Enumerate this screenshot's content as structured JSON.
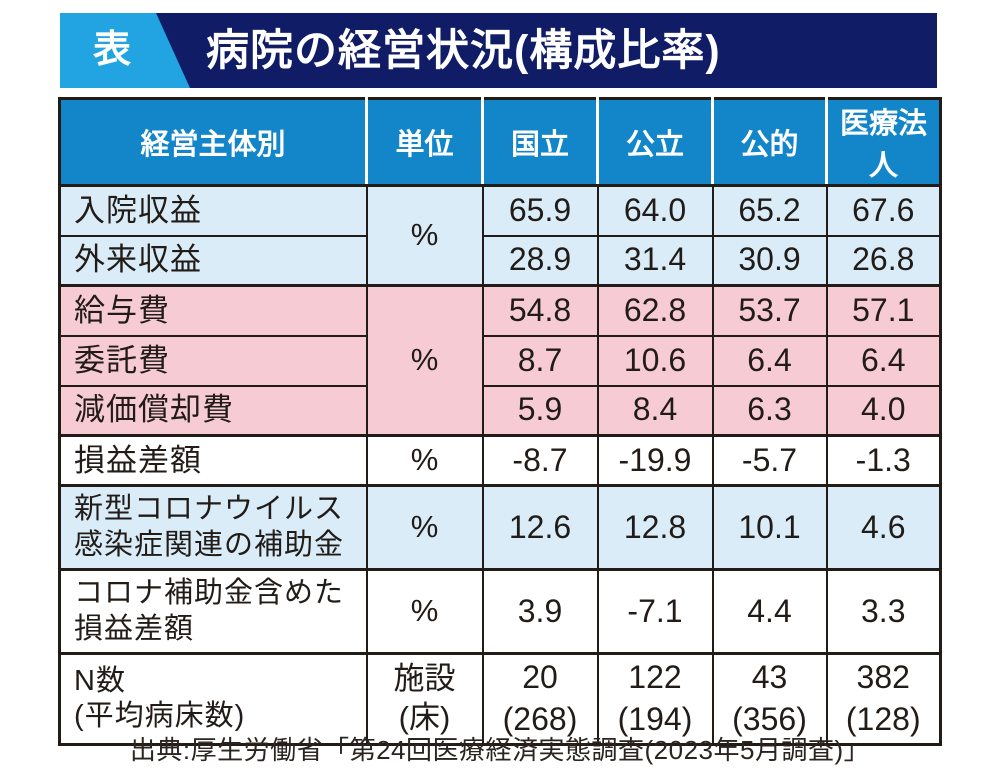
{
  "header": {
    "tag": "表",
    "title": "病院の経営状況(構成比率)"
  },
  "chart_data": {
    "type": "table",
    "title": "病院の経営状況(構成比率)",
    "columns": [
      "経営主体別",
      "単位",
      "国立",
      "公立",
      "公的",
      "医療法人"
    ],
    "row_groups": [
      {
        "bg": "lightblue",
        "unit": "%",
        "rows": [
          {
            "label": "入院収益",
            "values": [
              "65.9",
              "64.0",
              "65.2",
              "67.6"
            ]
          },
          {
            "label": "外来収益",
            "values": [
              "28.9",
              "31.4",
              "30.9",
              "26.8"
            ]
          }
        ]
      },
      {
        "bg": "pink",
        "unit": "%",
        "rows": [
          {
            "label": "給与費",
            "values": [
              "54.8",
              "62.8",
              "53.7",
              "57.1"
            ]
          },
          {
            "label": "委託費",
            "values": [
              "8.7",
              "10.6",
              "6.4",
              "6.4"
            ]
          },
          {
            "label": "減価償却費",
            "values": [
              "5.9",
              "8.4",
              "6.3",
              "4.0"
            ]
          }
        ]
      },
      {
        "bg": "white",
        "unit": "%",
        "rows": [
          {
            "label": "損益差額",
            "values": [
              "-8.7",
              "-19.9",
              "-5.7",
              "-1.3"
            ]
          }
        ]
      },
      {
        "bg": "lightblue",
        "unit": "%",
        "rows": [
          {
            "label": [
              "新型コロナウイルス",
              "感染症関連の補助金"
            ],
            "values": [
              "12.6",
              "12.8",
              "10.1",
              "4.6"
            ]
          }
        ]
      },
      {
        "bg": "white",
        "unit": "%",
        "rows": [
          {
            "label": [
              "コロナ補助金含めた",
              "損益差額"
            ],
            "values": [
              "3.9",
              "-7.1",
              "4.4",
              "3.3"
            ]
          }
        ]
      },
      {
        "bg": "white",
        "unit": [
          "施設",
          "(床)"
        ],
        "rows": [
          {
            "label": [
              "N数",
              "(平均病床数)"
            ],
            "values": [
              [
                "20",
                "(268)"
              ],
              [
                "122",
                "(194)"
              ],
              [
                "43",
                "(356)"
              ],
              [
                "382",
                "(128)"
              ]
            ]
          }
        ]
      }
    ],
    "source": "出典:厚生労働省「第24回医療経済実態調査(2023年5月調査)」"
  },
  "colors": {
    "navy": "#101c66",
    "cyan": "#22a3e2",
    "header-blue": "#1386c9",
    "row-lightblue": "#d9ecf8",
    "row-pink": "#f6cbd4",
    "border": "#221c18",
    "text": "#221c18"
  }
}
